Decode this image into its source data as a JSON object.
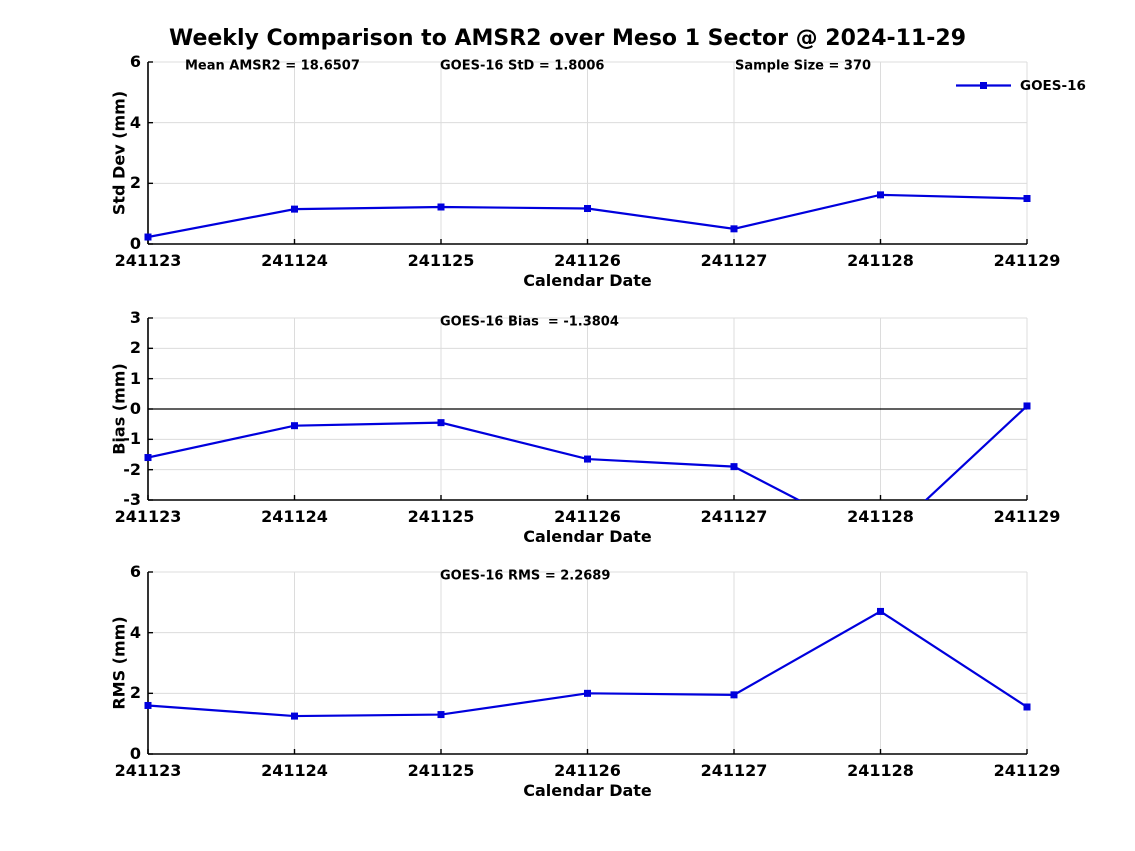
{
  "title": "Weekly Comparison to AMSR2 over Meso 1 Sector @ 2024-11-29",
  "colors": {
    "line": "#0000DD",
    "grid": "#DCDCDC",
    "axis": "#000000",
    "zero_line": "#000000",
    "text": "#000000",
    "background": "#FFFFFF"
  },
  "legend": {
    "label": "GOES-16",
    "position": "top-right"
  },
  "x_axis": {
    "label": "Calendar Date",
    "tick_labels": [
      "241123",
      "241124",
      "241125",
      "241126",
      "241127",
      "241128",
      "241129"
    ]
  },
  "chart_data": [
    {
      "type": "line",
      "name": "stddev",
      "ylabel": "Std Dev (mm)",
      "xlabel": "Calendar Date",
      "categories": [
        "241123",
        "241124",
        "241125",
        "241126",
        "241127",
        "241128",
        "241129"
      ],
      "series": [
        {
          "name": "GOES-16",
          "values": [
            0.23,
            1.15,
            1.22,
            1.17,
            0.5,
            1.62,
            1.5
          ]
        }
      ],
      "ylim": [
        0,
        6
      ],
      "yticks": [
        0,
        2,
        4,
        6
      ],
      "grid": true,
      "zero_line": false,
      "show_legend": true,
      "annotations": [
        "Mean AMSR2 = 18.6507",
        "GOES-16 StD = 1.8006",
        "Sample Size = 370"
      ]
    },
    {
      "type": "line",
      "name": "bias",
      "ylabel": "Bias (mm)",
      "xlabel": "Calendar Date",
      "categories": [
        "241123",
        "241124",
        "241125",
        "241126",
        "241127",
        "241128",
        "241129"
      ],
      "series": [
        {
          "name": "GOES-16",
          "values": [
            -1.6,
            -0.55,
            -0.45,
            -1.65,
            -1.9,
            -4.4,
            0.1
          ]
        }
      ],
      "ylim": [
        -3,
        3
      ],
      "yticks": [
        -3,
        -2,
        -1,
        0,
        1,
        2,
        3
      ],
      "grid": true,
      "zero_line": true,
      "show_legend": false,
      "annotations": [
        "GOES-16 Bias  = -1.3804"
      ]
    },
    {
      "type": "line",
      "name": "rms",
      "ylabel": "RMS (mm)",
      "xlabel": "Calendar Date",
      "categories": [
        "241123",
        "241124",
        "241125",
        "241126",
        "241127",
        "241128",
        "241129"
      ],
      "series": [
        {
          "name": "GOES-16",
          "values": [
            1.6,
            1.25,
            1.3,
            2.0,
            1.95,
            4.7,
            1.55
          ]
        }
      ],
      "ylim": [
        0,
        6
      ],
      "yticks": [
        0,
        2,
        4,
        6
      ],
      "grid": true,
      "zero_line": false,
      "show_legend": false,
      "annotations": [
        "GOES-16 RMS = 2.2689"
      ]
    }
  ]
}
